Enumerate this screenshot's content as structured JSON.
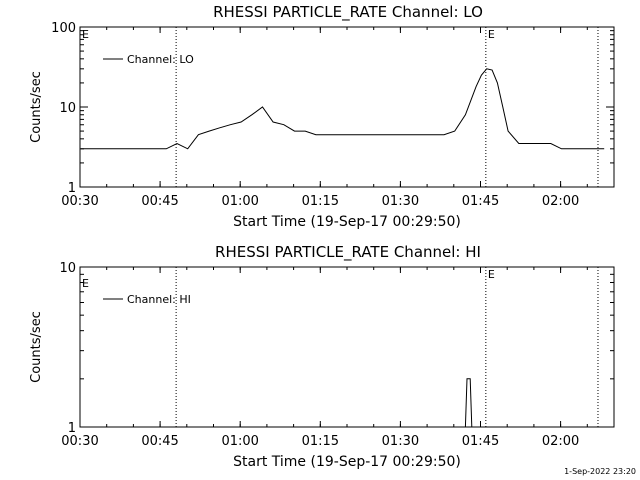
{
  "footer_timestamp": "1-Sep-2022 23:20",
  "chart_data": [
    {
      "type": "line",
      "title": "RHESSI PARTICLE_RATE Channel: LO",
      "xlabel": "Start Time (19-Sep-17 00:29:50)",
      "ylabel": "Counts/sec",
      "yscale": "log",
      "ylim": [
        1,
        100
      ],
      "xlim": [
        "00:30",
        "02:10"
      ],
      "x_ticks": [
        "00:30",
        "00:45",
        "01:00",
        "01:15",
        "01:30",
        "01:45",
        "02:00"
      ],
      "y_ticks": [
        "1",
        "10",
        "100"
      ],
      "legend": "top-left",
      "event_lines": [
        {
          "time": "00:48",
          "label": ""
        },
        {
          "time": "01:46",
          "label": "E"
        },
        {
          "time": "02:07",
          "label": ""
        }
      ],
      "corner_label": "E",
      "series": [
        {
          "name": "Channel: LO",
          "x_minutes": [
            0,
            2,
            4,
            6,
            8,
            10,
            12,
            14,
            16,
            18,
            20,
            22,
            24,
            26,
            28,
            30,
            32,
            34,
            36,
            38,
            40,
            42,
            44,
            46,
            48,
            50,
            52,
            54,
            56,
            58,
            60,
            62,
            64,
            66,
            68,
            70,
            72,
            74,
            75,
            76,
            77,
            78,
            79,
            80,
            82,
            84,
            86,
            88,
            90,
            92,
            94,
            96,
            98
          ],
          "values": [
            3,
            3,
            3,
            3,
            3,
            3,
            3,
            3,
            3,
            3.5,
            3,
            4.5,
            5,
            5.5,
            6,
            6.5,
            8,
            10,
            6.5,
            6,
            5,
            5,
            4.5,
            4.5,
            4.5,
            4.5,
            4.5,
            4.5,
            4.5,
            4.5,
            4.5,
            4.5,
            4.5,
            4.5,
            4.5,
            5,
            8,
            18,
            25,
            30,
            29,
            20,
            10,
            5,
            3.5,
            3.5,
            3.5,
            3.5,
            3,
            3,
            3,
            3,
            3
          ]
        }
      ]
    },
    {
      "type": "line",
      "title": "RHESSI PARTICLE_RATE Channel: HI",
      "xlabel": "Start Time (19-Sep-17 00:29:50)",
      "ylabel": "Counts/sec",
      "yscale": "log",
      "ylim": [
        1,
        10
      ],
      "xlim": [
        "00:30",
        "02:10"
      ],
      "x_ticks": [
        "00:30",
        "00:45",
        "01:00",
        "01:15",
        "01:30",
        "01:45",
        "02:00"
      ],
      "y_ticks": [
        "1",
        "10"
      ],
      "legend": "top-left",
      "event_lines": [
        {
          "time": "00:48",
          "label": ""
        },
        {
          "time": "01:46",
          "label": "E"
        },
        {
          "time": "02:07",
          "label": ""
        }
      ],
      "corner_label": "E",
      "series": [
        {
          "name": "Channel: HI",
          "x_minutes": [
            72.0,
            72.3,
            72.6,
            72.9,
            73.2
          ],
          "values": [
            1,
            2,
            2,
            2,
            1
          ]
        }
      ]
    }
  ]
}
